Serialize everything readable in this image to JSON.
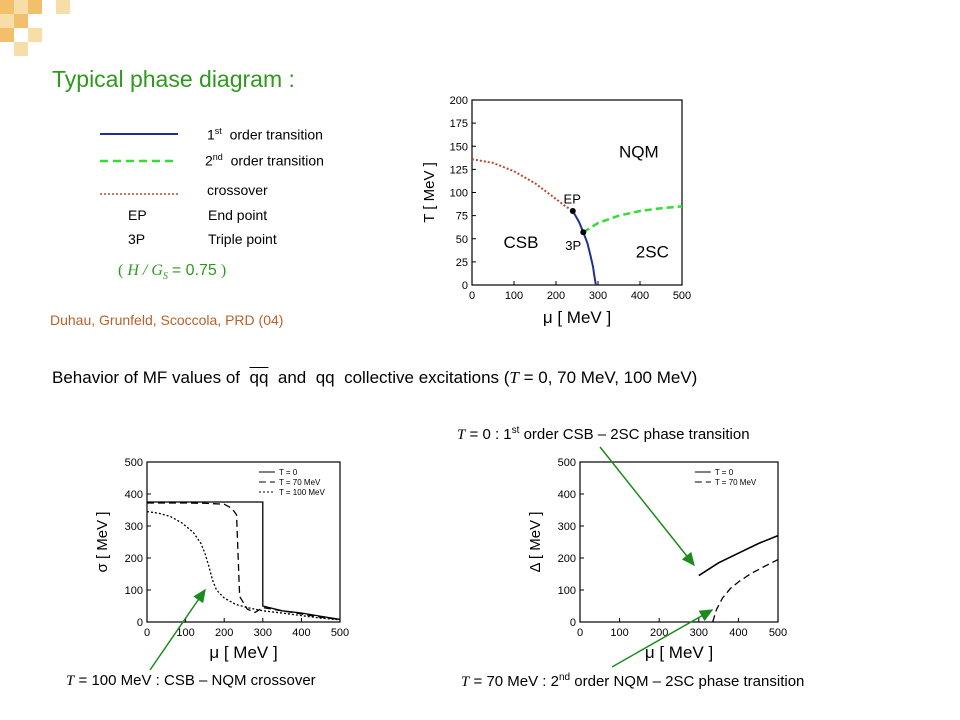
{
  "slide": {
    "title": "Typical phase diagram :",
    "legend": [
      {
        "sup": "st",
        "prefix": "1",
        "label": "order transition",
        "style": "solid",
        "color": "#1f2f9a"
      },
      {
        "sup": "nd",
        "prefix": "2",
        "label": "order transition",
        "style": "dashed",
        "color": "#33dd33"
      },
      {
        "sup": "",
        "prefix": "",
        "label": "crossover",
        "style": "dotted",
        "color": "#b84c2a"
      }
    ],
    "abbrev": [
      {
        "key": "EP",
        "value": "End point"
      },
      {
        "key": "3P",
        "value": "Triple point"
      }
    ],
    "ratio": {
      "open": "(",
      "expr": "H / G",
      "sub": "S",
      "eq": "= 0.75",
      "close": ")"
    },
    "reference": "Duhau, Grunfeld, Scoccola, PRD (04)",
    "behavior": {
      "prefix": "Behavior of MF values of",
      "qq_bar": "qq",
      "mid": "and",
      "qq": "qq",
      "suffix_a": "collective excitations (",
      "tvar": "T",
      "suffix_b": "= 0, 70 MeV, 100 MeV)"
    },
    "annotations": {
      "top_right": {
        "t": "T",
        "text_a": "= 0 : 1",
        "sup": "st",
        "text_b": " order CSB – 2SC phase transition"
      },
      "bottom_left": {
        "t": "T",
        "text": "= 100 MeV :  CSB – NQM crossover"
      },
      "bottom_right": {
        "t": "T",
        "text_a": "= 70 MeV :  2",
        "sup": "nd",
        "text_b": " order NQM – 2SC phase transition"
      }
    },
    "colors": {
      "title": "#2e9a1c",
      "reference": "#b8612a",
      "arrow": "#1c8a1c",
      "first_order": "#1f2f9a",
      "second_order": "#33dd33",
      "crossover": "#b84c2a"
    }
  },
  "chart_data": [
    {
      "type": "line",
      "xlabel": "μ  [ MeV ]",
      "ylabel": "T  [ MeV ]",
      "xlim": [
        0,
        500
      ],
      "ylim": [
        0,
        200
      ],
      "xticks": [
        "0",
        "100",
        "200",
        "300",
        "400",
        "500"
      ],
      "yticks": [
        "0",
        "25",
        "50",
        "75",
        "100",
        "125",
        "150",
        "175",
        "200"
      ],
      "region_labels": [
        "NQM",
        "CSB",
        "2SC",
        "EP",
        "3P"
      ],
      "series": [
        {
          "style": "dotted",
          "x": [
            0,
            50,
            100,
            150,
            200,
            220,
            240
          ],
          "y": [
            136,
            132,
            123,
            110,
            93,
            86,
            80
          ]
        },
        {
          "style": "solid",
          "x": [
            240,
            255,
            265,
            275,
            282,
            288,
            292,
            295
          ],
          "y": [
            80,
            68,
            57,
            45,
            32,
            20,
            8,
            0
          ]
        },
        {
          "style": "dashed",
          "x": [
            265,
            300,
            350,
            400,
            450,
            500
          ],
          "y": [
            57,
            67,
            75,
            80,
            83,
            85
          ]
        }
      ],
      "points": [
        {
          "label": "EP",
          "x": 240,
          "y": 80
        },
        {
          "label": "3P",
          "x": 265,
          "y": 57
        }
      ],
      "grid": false
    },
    {
      "type": "line",
      "xlabel": "μ  [ MeV ]",
      "ylabel": "σ  [ MeV ]",
      "xlim": [
        0,
        500
      ],
      "ylim": [
        0,
        500
      ],
      "xticks": [
        "0",
        "100",
        "200",
        "300",
        "400",
        "500"
      ],
      "yticks": [
        "0",
        "100",
        "200",
        "300",
        "400",
        "500"
      ],
      "legend": [
        "T = 0",
        "T = 70 MeV",
        "T = 100 MeV"
      ],
      "legend_position": "top-right",
      "series": [
        {
          "name": "T = 0",
          "style": "solid",
          "x": [
            0,
            100,
            200,
            300,
            300,
            350,
            400,
            450,
            500
          ],
          "y": [
            375,
            375,
            375,
            375,
            50,
            35,
            28,
            18,
            8
          ]
        },
        {
          "name": "T = 70 MeV",
          "style": "dashed",
          "x": [
            0,
            100,
            150,
            200,
            220,
            232,
            240,
            260,
            280,
            300,
            350,
            400,
            450,
            500
          ],
          "y": [
            372,
            372,
            371,
            368,
            355,
            335,
            80,
            40,
            30,
            45,
            35,
            25,
            15,
            8
          ]
        },
        {
          "name": "T = 100 MeV",
          "style": "dotted",
          "x": [
            0,
            30,
            60,
            90,
            120,
            140,
            150,
            160,
            170,
            180,
            200,
            230,
            260,
            300,
            350,
            400,
            450,
            500
          ],
          "y": [
            345,
            340,
            330,
            310,
            280,
            245,
            215,
            175,
            130,
            100,
            75,
            55,
            45,
            35,
            28,
            20,
            12,
            7
          ]
        }
      ],
      "grid": false
    },
    {
      "type": "line",
      "xlabel": "μ  [ MeV ]",
      "ylabel": "Δ  [ MeV ]",
      "xlim": [
        0,
        500
      ],
      "ylim": [
        0,
        500
      ],
      "xticks": [
        "0",
        "100",
        "200",
        "300",
        "400",
        "500"
      ],
      "yticks": [
        "0",
        "100",
        "200",
        "300",
        "400",
        "500"
      ],
      "legend": [
        "T = 0",
        "T = 70 MeV"
      ],
      "legend_position": "top-right",
      "series": [
        {
          "name": "T = 0",
          "style": "solid",
          "x": [
            300,
            350,
            400,
            450,
            500
          ],
          "y": [
            145,
            185,
            215,
            245,
            270
          ]
        },
        {
          "name": "T = 70 MeV",
          "style": "dashed",
          "x": [
            335,
            345,
            360,
            380,
            400,
            430,
            460,
            500
          ],
          "y": [
            0,
            40,
            75,
            105,
            125,
            150,
            170,
            195
          ]
        }
      ],
      "grid": false
    }
  ]
}
